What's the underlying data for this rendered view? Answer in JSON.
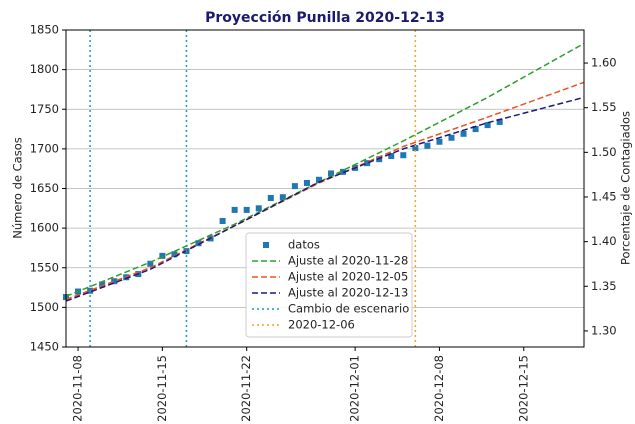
{
  "chart_data": {
    "type": "line",
    "title": "Proyección Punilla 2020-12-13",
    "ylabel": "Número de Casos",
    "y2label": "Porcentaje de Contagiados",
    "xlim": [
      "2020-11-07",
      "2020-12-20"
    ],
    "xticks": [
      "2020-11-08",
      "2020-11-15",
      "2020-11-22",
      "2020-12-01",
      "2020-12-08",
      "2020-12-15"
    ],
    "ylim": [
      1450,
      1850
    ],
    "yticks": [
      1450,
      1500,
      1550,
      1600,
      1650,
      1700,
      1750,
      1800,
      1850
    ],
    "y2lim": [
      1.282,
      1.637
    ],
    "y2ticks": [
      {
        "value": 1.3,
        "label": "1.30"
      },
      {
        "value": 1.35,
        "label": "1.35"
      },
      {
        "value": 1.4,
        "label": "1.40"
      },
      {
        "value": 1.45,
        "label": "1.45"
      },
      {
        "value": 1.5,
        "label": "1.50"
      },
      {
        "value": 1.55,
        "label": "1.55"
      },
      {
        "value": 1.6,
        "label": "1.60"
      }
    ],
    "grid": true,
    "legend": "lower center",
    "series": [
      {
        "name": "datos",
        "type": "scatter",
        "color": "#1f77b4",
        "x": [
          "2020-11-07",
          "2020-11-08",
          "2020-11-09",
          "2020-11-10",
          "2020-11-11",
          "2020-11-12",
          "2020-11-13",
          "2020-11-14",
          "2020-11-15",
          "2020-11-16",
          "2020-11-17",
          "2020-11-18",
          "2020-11-19",
          "2020-11-20",
          "2020-11-21",
          "2020-11-22",
          "2020-11-23",
          "2020-11-24",
          "2020-11-25",
          "2020-11-26",
          "2020-11-27",
          "2020-11-28",
          "2020-11-29",
          "2020-11-30",
          "2020-12-01",
          "2020-12-02",
          "2020-12-03",
          "2020-12-04",
          "2020-12-05",
          "2020-12-06",
          "2020-12-07",
          "2020-12-08",
          "2020-12-09",
          "2020-12-10",
          "2020-12-11",
          "2020-12-12",
          "2020-12-13"
        ],
        "values": [
          1513,
          1520,
          1521,
          1529,
          1533,
          1538,
          1542,
          1555,
          1565,
          1567,
          1571,
          1581,
          1587,
          1609,
          1623,
          1623,
          1625,
          1638,
          1639,
          1653,
          1657,
          1661,
          1669,
          1671,
          1676,
          1682,
          1687,
          1691,
          1692,
          1701,
          1704,
          1709,
          1714,
          1719,
          1725,
          1730,
          1734
        ]
      },
      {
        "name": "Ajuste al 2020-11-28",
        "type": "line",
        "color": "#2ca02c",
        "x": [
          "2020-11-07",
          "2020-11-14",
          "2020-11-21",
          "2020-11-28",
          "2020-12-05",
          "2020-12-12",
          "2020-12-20"
        ],
        "values": [
          1514,
          1557,
          1605,
          1658,
          1710,
          1765,
          1833
        ]
      },
      {
        "name": "Ajuste al 2020-12-05",
        "type": "line",
        "color": "#f0501e",
        "x": [
          "2020-11-07",
          "2020-11-14",
          "2020-11-21",
          "2020-11-28",
          "2020-12-05",
          "2020-12-12",
          "2020-12-20"
        ],
        "values": [
          1510,
          1550,
          1603,
          1657,
          1703,
          1740,
          1784
        ]
      },
      {
        "name": "Ajuste al 2020-12-13",
        "type": "line",
        "color": "#1a1a78",
        "x": [
          "2020-11-07",
          "2020-11-14",
          "2020-11-21",
          "2020-11-28",
          "2020-12-05",
          "2020-12-12",
          "2020-12-20"
        ],
        "values": [
          1508,
          1548,
          1603,
          1658,
          1700,
          1733,
          1765
        ]
      },
      {
        "name": "Cambio de escenario",
        "type": "vline",
        "color": "#17a0b4",
        "x": [
          "2020-11-09",
          "2020-11-17"
        ]
      },
      {
        "name": "2020-12-06",
        "type": "vline",
        "color": "#ff9f1a",
        "x": [
          "2020-12-06"
        ]
      }
    ]
  }
}
